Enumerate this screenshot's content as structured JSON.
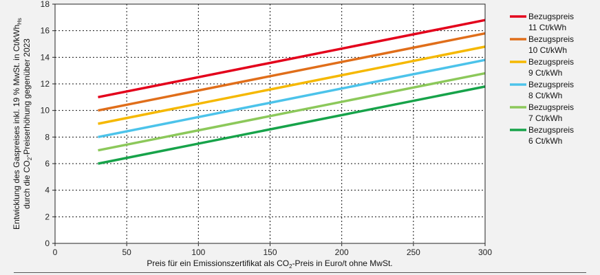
{
  "chart_data": {
    "type": "line",
    "x_ticks": [
      0,
      50,
      100,
      150,
      200,
      250,
      300
    ],
    "y_ticks": [
      0,
      2,
      4,
      6,
      8,
      10,
      12,
      14,
      16,
      18
    ],
    "xlim": [
      0,
      300
    ],
    "ylim": [
      0,
      18
    ],
    "grid": true,
    "legend_position": "right",
    "xlabel": {
      "pre": "Preis für ein Emissionszertifikat als CO",
      "sub": "2",
      "post": "-Preis in Euro/t ohne MwSt."
    },
    "ylabel": {
      "line1_pre": "Entwicklung des Gaspreises  inkl. 19 % MwSt. in Ct/kWh",
      "line1_sub": "Hs",
      "line2_pre": "durch die CO",
      "line2_sub": "2",
      "line2_post": "-Preiserhöhung gegenüber 2023"
    },
    "series": [
      {
        "name": "Bezugspreis",
        "name2": "11 Ct/kWh",
        "color": "#e3001b",
        "x": [
          30,
          300
        ],
        "y": [
          11,
          16.8
        ]
      },
      {
        "name": "Bezugspreis",
        "name2": "10 Ct/kWh",
        "color": "#e06e1a",
        "x": [
          30,
          300
        ],
        "y": [
          10,
          15.8
        ]
      },
      {
        "name": "Bezugspreis",
        "name2": "9 Ct/kWh",
        "color": "#f5b800",
        "x": [
          30,
          300
        ],
        "y": [
          9,
          14.8
        ]
      },
      {
        "name": "Bezugspreis",
        "name2": "8 Ct/kWh",
        "color": "#4cc3ea",
        "x": [
          30,
          300
        ],
        "y": [
          8,
          13.8
        ]
      },
      {
        "name": "Bezugspreis",
        "name2": "7 Ct/kWh",
        "color": "#8cc85a",
        "x": [
          30,
          300
        ],
        "y": [
          7,
          12.8
        ]
      },
      {
        "name": "Bezugspreis",
        "name2": "6 Ct/kWh",
        "color": "#17a34a",
        "x": [
          30,
          300
        ],
        "y": [
          6,
          11.8
        ]
      }
    ]
  }
}
